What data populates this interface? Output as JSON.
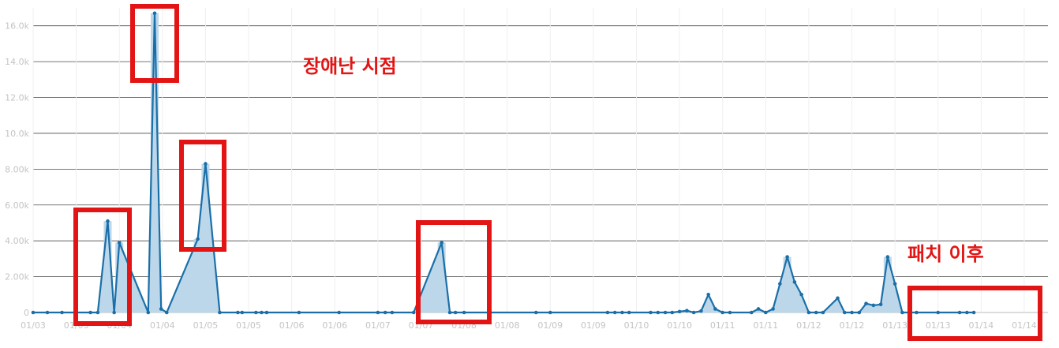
{
  "chart_data": {
    "type": "area",
    "title": "",
    "xlabel": "",
    "ylabel": "",
    "ylim": [
      0,
      17000
    ],
    "grid": true,
    "legend": "none",
    "y_ticks": [
      "0",
      "2.00k",
      "4.00k",
      "6.00k",
      "8.00k",
      "10.0k",
      "12.0k",
      "14.0k",
      "16.0k"
    ],
    "y_tick_values": [
      0,
      2000,
      4000,
      6000,
      8000,
      10000,
      12000,
      14000,
      16000
    ],
    "x_ticks": [
      "01/03",
      "01/03",
      "01/04",
      "01/04",
      "01/05",
      "01/05",
      "01/06",
      "01/06",
      "01/07",
      "01/07",
      "01/08",
      "01/08",
      "01/09",
      "01/09",
      "01/10",
      "01/10",
      "01/11",
      "01/11",
      "01/12",
      "01/12",
      "01/13",
      "01/13",
      "01/14",
      "01/14"
    ],
    "series": [
      {
        "color": "#1a6fa8",
        "fill": "#bcd7ea",
        "points": [
          [
            0.0,
            0
          ],
          [
            0.33,
            0
          ],
          [
            0.67,
            0
          ],
          [
            1.33,
            0
          ],
          [
            1.5,
            0
          ],
          [
            1.73,
            5100
          ],
          [
            1.88,
            0
          ],
          [
            2.0,
            3900
          ],
          [
            2.67,
            0
          ],
          [
            2.82,
            16700
          ],
          [
            2.97,
            200
          ],
          [
            3.1,
            0
          ],
          [
            3.82,
            4100
          ],
          [
            4.0,
            8300
          ],
          [
            4.33,
            0
          ],
          [
            4.75,
            0
          ],
          [
            4.85,
            0
          ],
          [
            5.17,
            0
          ],
          [
            5.3,
            0
          ],
          [
            5.42,
            0
          ],
          [
            6.17,
            0
          ],
          [
            7.1,
            0
          ],
          [
            8.0,
            0
          ],
          [
            8.17,
            0
          ],
          [
            8.33,
            0
          ],
          [
            8.83,
            0
          ],
          [
            9.48,
            3900
          ],
          [
            9.67,
            0
          ],
          [
            9.8,
            0
          ],
          [
            10.0,
            0
          ],
          [
            11.67,
            0
          ],
          [
            12.0,
            0
          ],
          [
            13.33,
            0
          ],
          [
            13.5,
            0
          ],
          [
            13.67,
            0
          ],
          [
            13.83,
            0
          ],
          [
            14.33,
            0
          ],
          [
            14.5,
            0
          ],
          [
            14.67,
            0
          ],
          [
            14.83,
            0
          ],
          [
            15.0,
            50
          ],
          [
            15.17,
            100
          ],
          [
            15.33,
            0
          ],
          [
            15.5,
            80
          ],
          [
            15.67,
            1000
          ],
          [
            15.83,
            200
          ],
          [
            16.0,
            0
          ],
          [
            16.17,
            0
          ],
          [
            16.67,
            0
          ],
          [
            16.83,
            200
          ],
          [
            17.0,
            0
          ],
          [
            17.17,
            200
          ],
          [
            17.33,
            1600
          ],
          [
            17.5,
            3100
          ],
          [
            17.67,
            1700
          ],
          [
            17.83,
            1000
          ],
          [
            18.0,
            0
          ],
          [
            18.17,
            0
          ],
          [
            18.33,
            0
          ],
          [
            18.67,
            800
          ],
          [
            18.83,
            0
          ],
          [
            19.0,
            0
          ],
          [
            19.17,
            0
          ],
          [
            19.33,
            500
          ],
          [
            19.5,
            400
          ],
          [
            19.67,
            450
          ],
          [
            19.83,
            3100
          ],
          [
            20.0,
            1600
          ],
          [
            20.17,
            0
          ],
          [
            20.33,
            0
          ],
          [
            20.5,
            0
          ],
          [
            21.0,
            0
          ],
          [
            21.5,
            0
          ],
          [
            21.67,
            0
          ],
          [
            21.83,
            0
          ]
        ]
      }
    ],
    "annotations": [
      "장애난 시점",
      "패치 이후"
    ]
  }
}
